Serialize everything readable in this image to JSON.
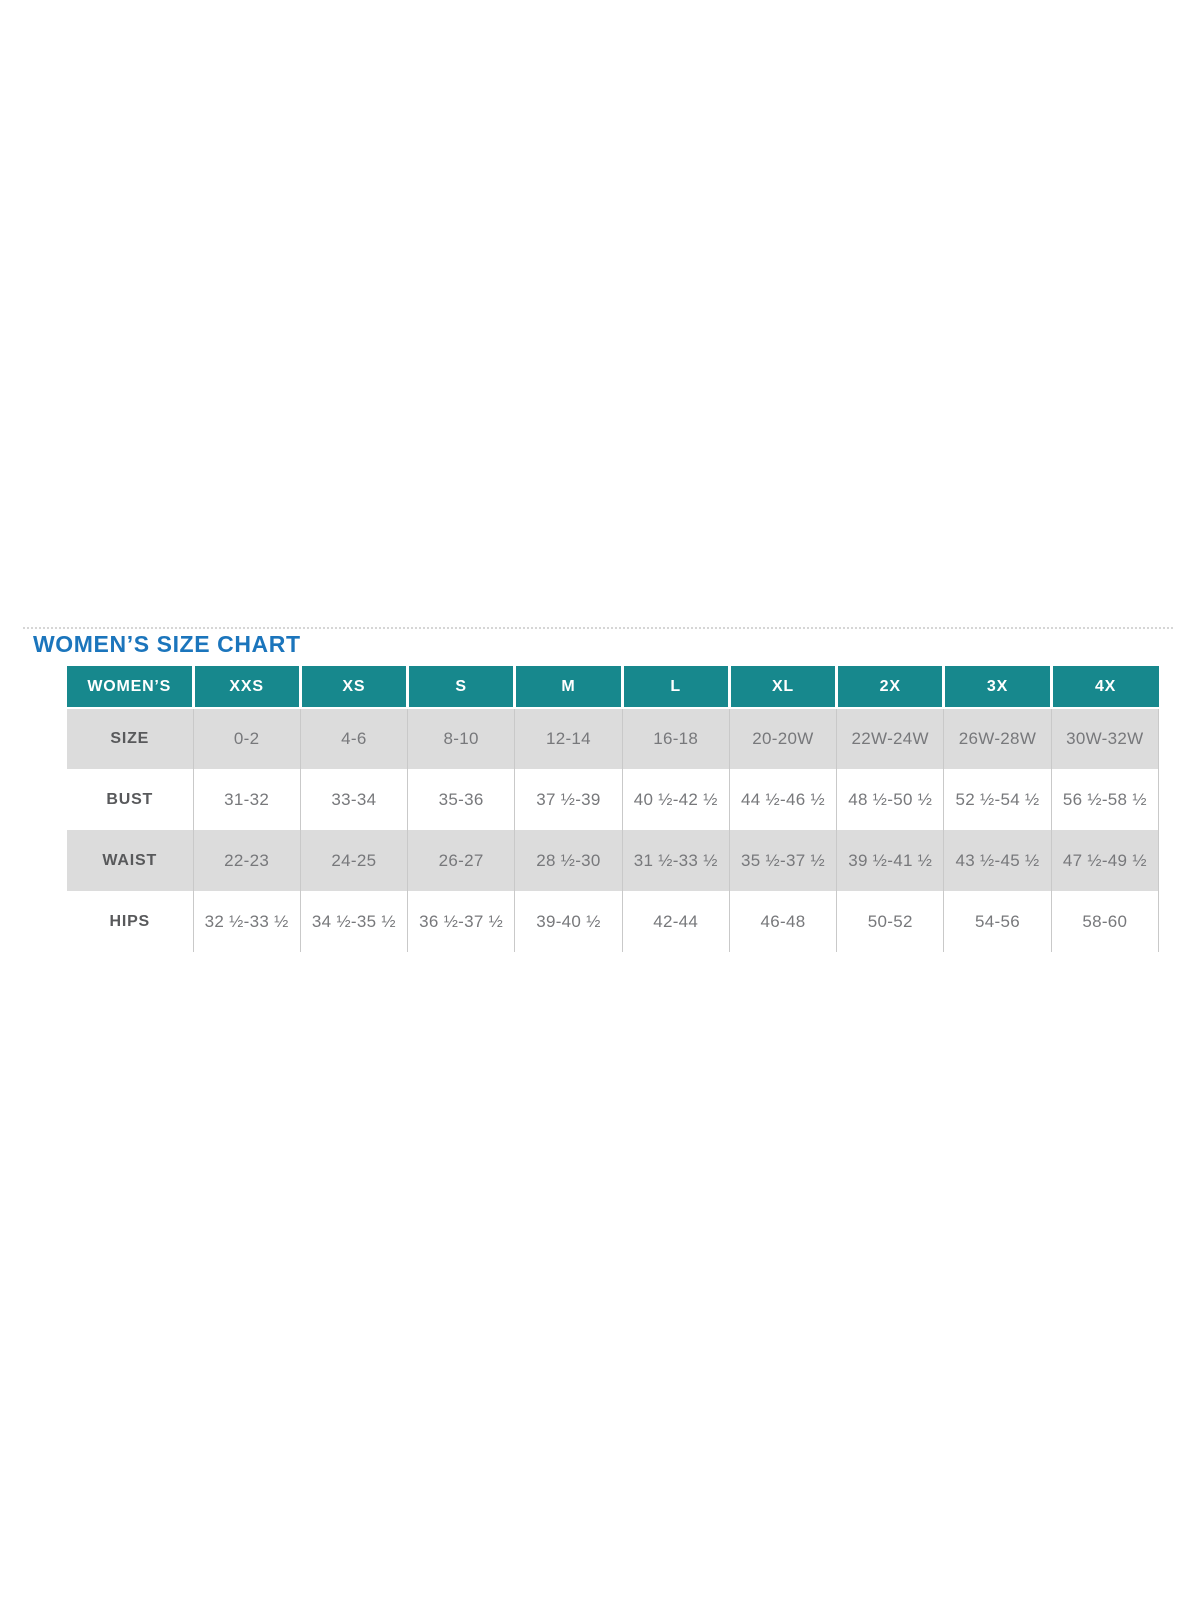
{
  "title": "WOMEN’S SIZE CHART",
  "colors": {
    "title_blue": "#1b75bc",
    "header_teal": "#17888d",
    "header_text": "#ffffff",
    "stripe_gray": "#dcdcdc",
    "cell_text": "#77787b",
    "label_text": "#58595b",
    "grid_line": "#c9c9c9",
    "dotted_divider": "#d6d6d6"
  },
  "chart_data": {
    "type": "table",
    "title": "WOMEN’S SIZE CHART",
    "columns": [
      "WOMEN’S",
      "XXS",
      "XS",
      "S",
      "M",
      "L",
      "XL",
      "2X",
      "3X",
      "4X"
    ],
    "rows": [
      {
        "label": "SIZE",
        "values": [
          "0-2",
          "4-6",
          "8-10",
          "12-14",
          "16-18",
          "20-20W",
          "22W-24W",
          "26W-28W",
          "30W-32W"
        ]
      },
      {
        "label": "BUST",
        "values": [
          "31-32",
          "33-34",
          "35-36",
          "37 ½-39",
          "40 ½-42 ½",
          "44 ½-46 ½",
          "48 ½-50 ½",
          "52 ½-54 ½",
          "56 ½-58 ½"
        ]
      },
      {
        "label": "WAIST",
        "values": [
          "22-23",
          "24-25",
          "26-27",
          "28 ½-30",
          "31 ½-33 ½",
          "35 ½-37 ½",
          "39 ½-41 ½",
          "43 ½-45 ½",
          "47 ½-49 ½"
        ]
      },
      {
        "label": "HIPS",
        "values": [
          "32 ½-33 ½",
          "34 ½-35 ½",
          "36 ½-37 ½",
          "39-40 ½",
          "42-44",
          "46-48",
          "50-52",
          "54-56",
          "58-60"
        ]
      }
    ],
    "layout": {
      "striped_row_labels": [
        "SIZE",
        "WAIST"
      ],
      "grid": "vertical-lines-only",
      "header_position": "top"
    }
  }
}
